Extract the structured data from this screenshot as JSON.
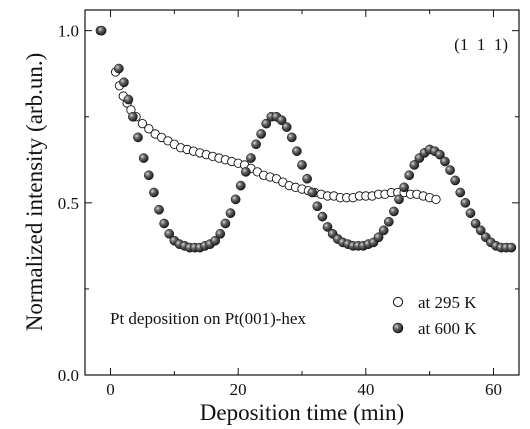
{
  "chart_data": {
    "type": "scatter",
    "title": "",
    "xlabel": "Deposition time (min)",
    "ylabel": "Normalized intensity (arb.un.)",
    "xlim": [
      -4,
      64
    ],
    "ylim": [
      0,
      1.06
    ],
    "x_ticks": [
      0,
      20,
      40,
      60
    ],
    "y_ticks": [
      0.0,
      0.5,
      1.0
    ],
    "x_tick_labels": [
      "0",
      "20",
      "40",
      "60"
    ],
    "y_tick_labels": [
      "0.0",
      "0.5",
      "1.0"
    ],
    "grid": false,
    "legend_position": "bottom-right",
    "annotations": [
      {
        "text": "(1  1  1)",
        "position": "top-right"
      },
      {
        "text": "Pt deposition on Pt(001)-hex",
        "position": "bottom-left"
      }
    ],
    "series": [
      {
        "name": "at 295 K",
        "marker": "open-circle",
        "points": [
          [
            -1.6,
            1.0
          ],
          [
            0.8,
            0.88
          ],
          [
            1.4,
            0.84
          ],
          [
            2.0,
            0.81
          ],
          [
            2.6,
            0.79
          ],
          [
            3.2,
            0.77
          ],
          [
            4.0,
            0.75
          ],
          [
            5.0,
            0.73
          ],
          [
            6.0,
            0.715
          ],
          [
            7.0,
            0.7
          ],
          [
            8.0,
            0.69
          ],
          [
            9.0,
            0.68
          ],
          [
            10.0,
            0.67
          ],
          [
            11.0,
            0.66
          ],
          [
            12.0,
            0.655
          ],
          [
            13.0,
            0.65
          ],
          [
            14.0,
            0.645
          ],
          [
            15.0,
            0.64
          ],
          [
            16.0,
            0.635
          ],
          [
            17.0,
            0.63
          ],
          [
            18.0,
            0.625
          ],
          [
            19.0,
            0.62
          ],
          [
            20.0,
            0.615
          ],
          [
            21.0,
            0.61
          ],
          [
            22.0,
            0.6
          ],
          [
            23.0,
            0.59
          ],
          [
            24.0,
            0.58
          ],
          [
            25.0,
            0.575
          ],
          [
            26.0,
            0.57
          ],
          [
            27.0,
            0.56
          ],
          [
            28.0,
            0.55
          ],
          [
            29.0,
            0.545
          ],
          [
            30.0,
            0.54
          ],
          [
            31.0,
            0.535
          ],
          [
            32.0,
            0.53
          ],
          [
            33.0,
            0.525
          ],
          [
            34.0,
            0.52
          ],
          [
            35.0,
            0.52
          ],
          [
            36.0,
            0.515
          ],
          [
            37.0,
            0.515
          ],
          [
            38.0,
            0.515
          ],
          [
            39.0,
            0.52
          ],
          [
            40.0,
            0.52
          ],
          [
            41.0,
            0.52
          ],
          [
            42.0,
            0.525
          ],
          [
            43.0,
            0.525
          ],
          [
            44.0,
            0.53
          ],
          [
            45.0,
            0.53
          ],
          [
            46.0,
            0.53
          ],
          [
            47.0,
            0.525
          ],
          [
            48.0,
            0.525
          ],
          [
            49.0,
            0.52
          ],
          [
            50.0,
            0.515
          ],
          [
            51.0,
            0.51
          ]
        ]
      },
      {
        "name": "at 600 K",
        "marker": "filled-sphere",
        "points": [
          [
            -1.4,
            1.0
          ],
          [
            1.3,
            0.89
          ],
          [
            2.1,
            0.85
          ],
          [
            2.8,
            0.8
          ],
          [
            3.5,
            0.75
          ],
          [
            4.3,
            0.69
          ],
          [
            5.2,
            0.63
          ],
          [
            6.0,
            0.58
          ],
          [
            6.8,
            0.53
          ],
          [
            7.6,
            0.48
          ],
          [
            8.4,
            0.44
          ],
          [
            9.2,
            0.41
          ],
          [
            10.0,
            0.39
          ],
          [
            10.8,
            0.38
          ],
          [
            11.6,
            0.375
          ],
          [
            12.4,
            0.37
          ],
          [
            13.2,
            0.37
          ],
          [
            14.0,
            0.37
          ],
          [
            14.8,
            0.375
          ],
          [
            15.6,
            0.38
          ],
          [
            16.4,
            0.39
          ],
          [
            17.2,
            0.41
          ],
          [
            18.0,
            0.44
          ],
          [
            18.8,
            0.47
          ],
          [
            19.6,
            0.51
          ],
          [
            20.4,
            0.55
          ],
          [
            21.2,
            0.59
          ],
          [
            22.0,
            0.63
          ],
          [
            22.8,
            0.67
          ],
          [
            23.6,
            0.7
          ],
          [
            24.4,
            0.73
          ],
          [
            25.2,
            0.75
          ],
          [
            26.0,
            0.75
          ],
          [
            26.8,
            0.74
          ],
          [
            27.6,
            0.72
          ],
          [
            28.4,
            0.69
          ],
          [
            29.2,
            0.65
          ],
          [
            30.0,
            0.61
          ],
          [
            30.8,
            0.57
          ],
          [
            31.6,
            0.53
          ],
          [
            32.4,
            0.49
          ],
          [
            33.2,
            0.46
          ],
          [
            34.0,
            0.43
          ],
          [
            34.8,
            0.41
          ],
          [
            35.6,
            0.395
          ],
          [
            36.4,
            0.385
          ],
          [
            37.2,
            0.38
          ],
          [
            38.0,
            0.375
          ],
          [
            38.8,
            0.375
          ],
          [
            39.6,
            0.375
          ],
          [
            40.4,
            0.38
          ],
          [
            41.2,
            0.385
          ],
          [
            42.0,
            0.4
          ],
          [
            42.8,
            0.42
          ],
          [
            43.6,
            0.445
          ],
          [
            44.4,
            0.475
          ],
          [
            45.2,
            0.51
          ],
          [
            46.0,
            0.545
          ],
          [
            46.8,
            0.58
          ],
          [
            47.6,
            0.61
          ],
          [
            48.4,
            0.63
          ],
          [
            49.2,
            0.645
          ],
          [
            50.0,
            0.655
          ],
          [
            50.8,
            0.65
          ],
          [
            51.6,
            0.64
          ],
          [
            52.4,
            0.62
          ],
          [
            53.2,
            0.595
          ],
          [
            54.0,
            0.565
          ],
          [
            54.8,
            0.53
          ],
          [
            55.6,
            0.5
          ],
          [
            56.4,
            0.47
          ],
          [
            57.2,
            0.44
          ],
          [
            58.0,
            0.42
          ],
          [
            58.8,
            0.4
          ],
          [
            59.6,
            0.385
          ],
          [
            60.4,
            0.375
          ],
          [
            61.2,
            0.37
          ],
          [
            62.0,
            0.37
          ],
          [
            62.8,
            0.37
          ]
        ]
      }
    ]
  }
}
